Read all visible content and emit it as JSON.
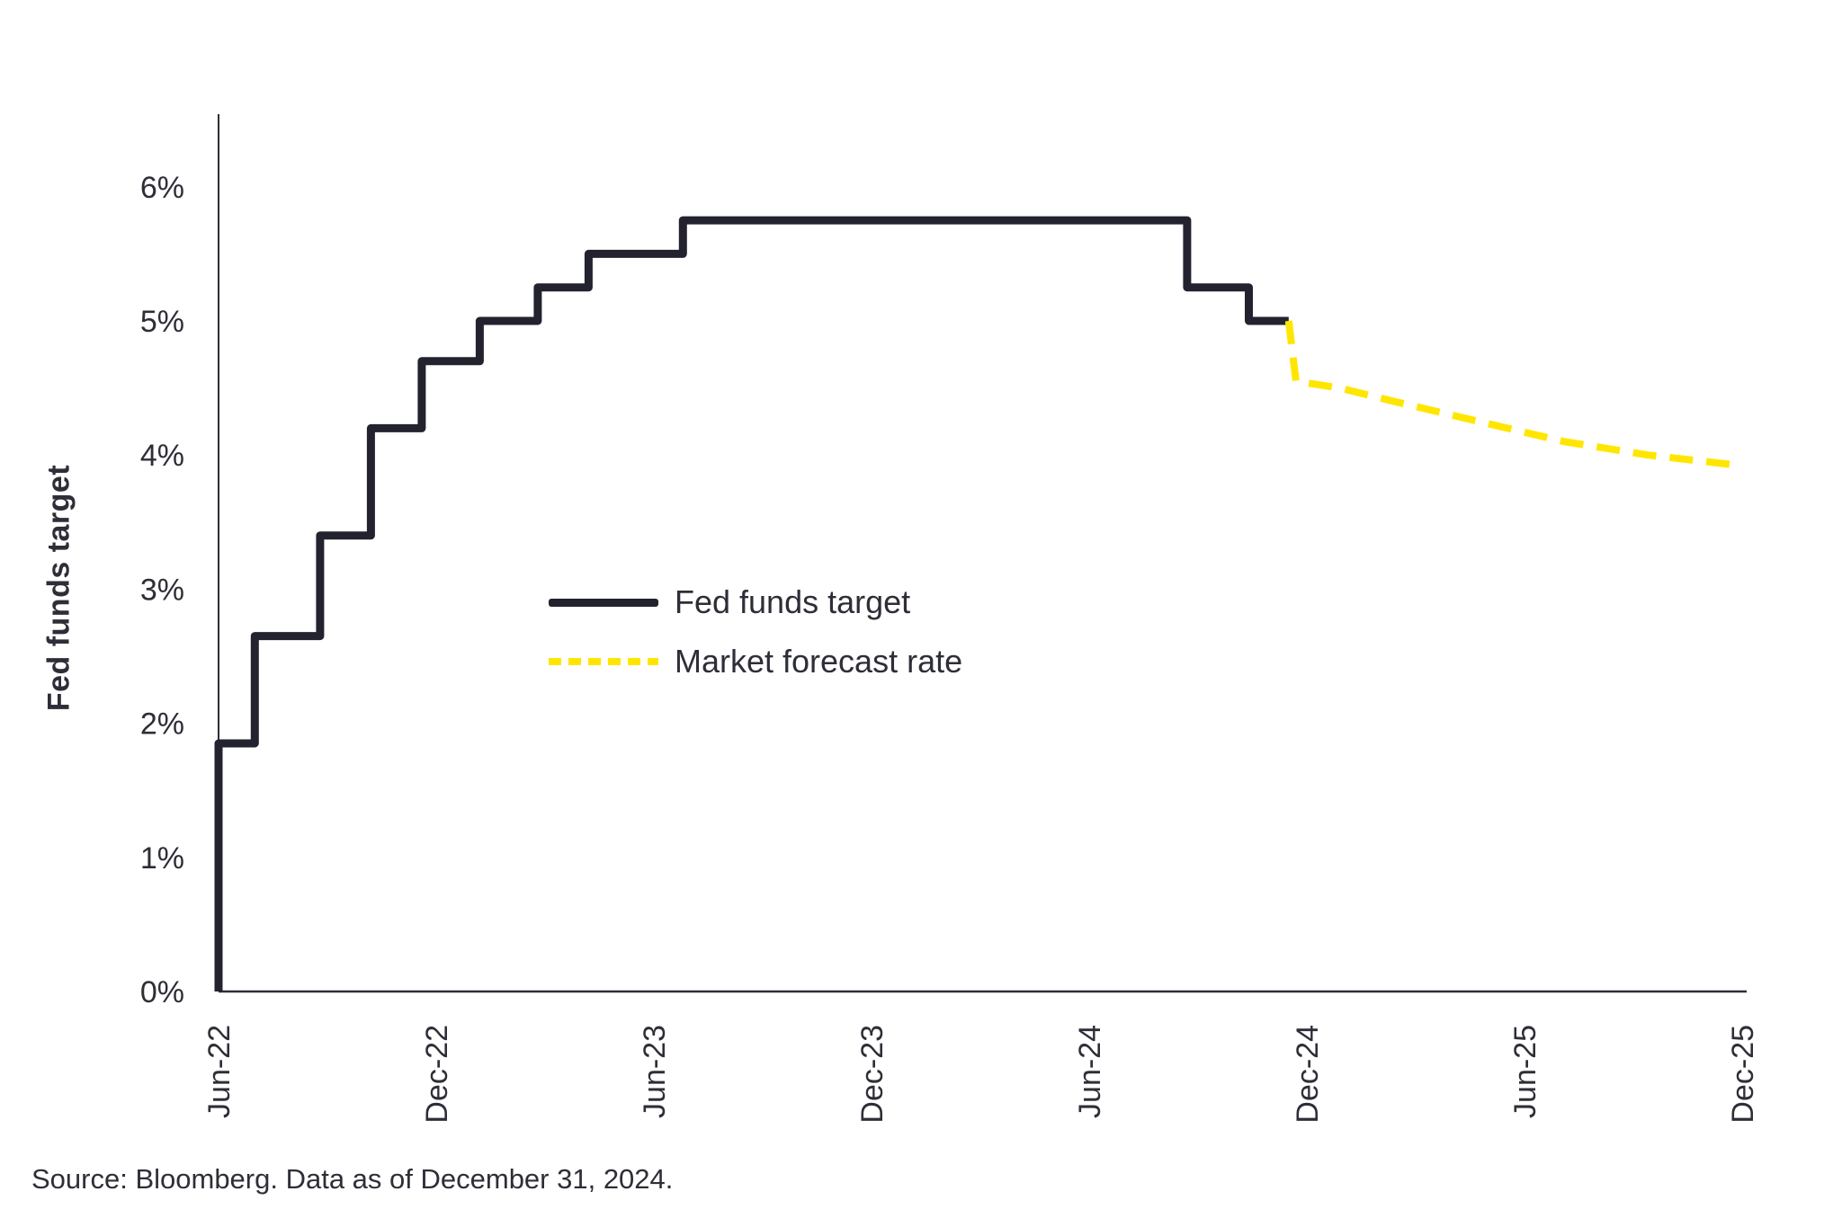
{
  "page": {
    "background": "#ffffff",
    "text_color": "#2e2e38"
  },
  "chart_data": {
    "type": "line",
    "title": "",
    "ylabel": "Fed funds target",
    "xlabel": "",
    "grid": false,
    "legend_position": "inside-left-middle",
    "axis_color": "#2e2e38",
    "y_tick_labels": [
      "0%",
      "1%",
      "2%",
      "3%",
      "4%",
      "5%",
      "6%"
    ],
    "y_tick_values": [
      0,
      1,
      2,
      3,
      4,
      5,
      6
    ],
    "ylim": [
      0,
      6.5
    ],
    "x_tick_labels": [
      "Jun-22",
      "Dec-22",
      "Jun-23",
      "Dec-23",
      "Jun-24",
      "Dec-24",
      "Jun-25",
      "Dec-25"
    ],
    "x_tick_positions_months": [
      0,
      6,
      12,
      18,
      24,
      30,
      36,
      42
    ],
    "xlim_months": [
      0,
      42
    ],
    "series": [
      {
        "name": "Fed funds target",
        "style": "solid",
        "color": "#23232f",
        "points_note": "x in months after Jun-2022, y in percent; step path vertices",
        "points": [
          [
            0,
            0
          ],
          [
            0,
            1.85
          ],
          [
            1.0,
            1.85
          ],
          [
            1.0,
            2.65
          ],
          [
            2.8,
            2.65
          ],
          [
            2.8,
            3.4
          ],
          [
            4.2,
            3.4
          ],
          [
            4.2,
            4.2
          ],
          [
            5.6,
            4.2
          ],
          [
            5.6,
            4.7
          ],
          [
            7.2,
            4.7
          ],
          [
            7.2,
            5.0
          ],
          [
            8.8,
            5.0
          ],
          [
            8.8,
            5.25
          ],
          [
            10.2,
            5.25
          ],
          [
            10.2,
            5.5
          ],
          [
            12.8,
            5.5
          ],
          [
            12.8,
            5.75
          ],
          [
            26.7,
            5.75
          ],
          [
            26.7,
            5.25
          ],
          [
            28.4,
            5.25
          ],
          [
            28.4,
            5.0
          ],
          [
            29.5,
            5.0
          ]
        ]
      },
      {
        "name": "Market forecast rate",
        "style": "dashed",
        "color": "#ffe600",
        "points": [
          [
            29.5,
            5.0
          ],
          [
            29.7,
            4.55
          ],
          [
            30.9,
            4.5
          ],
          [
            32.4,
            4.4
          ],
          [
            34.9,
            4.24
          ],
          [
            37.1,
            4.1
          ],
          [
            39.4,
            4.0
          ],
          [
            42,
            3.92
          ]
        ]
      }
    ],
    "legend": {
      "entries": [
        {
          "label": "Fed funds target",
          "style": "solid",
          "color": "#23232f"
        },
        {
          "label": "Market forecast rate",
          "style": "dashed",
          "color": "#ffe600"
        }
      ]
    },
    "source": "Source: Bloomberg. Data as of December 31, 2024."
  }
}
